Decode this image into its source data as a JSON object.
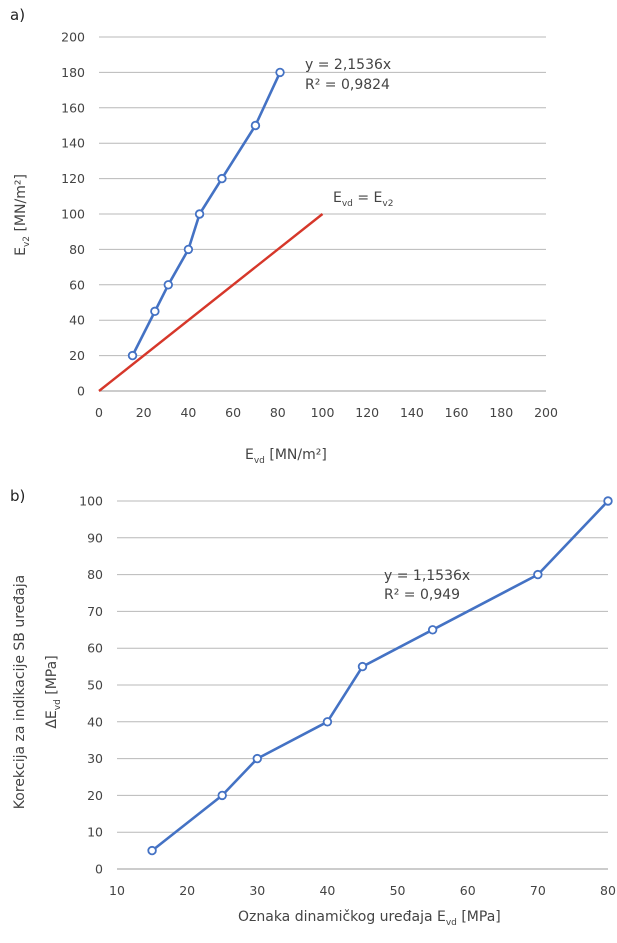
{
  "chart_data": [
    {
      "panel_label": "a)",
      "type": "line",
      "xlabel": {
        "main": "E",
        "sub": "vd",
        "unit": " [MN/m²]"
      },
      "ylabel": {
        "main": "E",
        "sub": "v2",
        "unit": " [MN/m²]"
      },
      "xlim": [
        0,
        200
      ],
      "ylim": [
        0,
        200
      ],
      "xticks": [
        0,
        20,
        40,
        60,
        80,
        100,
        120,
        140,
        160,
        180,
        200
      ],
      "yticks": [
        0,
        20,
        40,
        60,
        80,
        100,
        120,
        140,
        160,
        180,
        200
      ],
      "grid": "horizontal",
      "series": [
        {
          "color": "#4472c4",
          "markers": true,
          "points": [
            [
              15,
              20
            ],
            [
              25,
              45
            ],
            [
              31,
              60
            ],
            [
              40,
              80
            ],
            [
              45,
              100
            ],
            [
              55,
              120
            ],
            [
              70,
              150
            ],
            [
              81,
              180
            ]
          ]
        },
        {
          "color": "#d6372a",
          "markers": false,
          "points": [
            [
              0,
              0
            ],
            [
              100,
              100
            ]
          ]
        }
      ],
      "annotations": {
        "fit_equation": "y = 2,1536x",
        "fit_r2": "R² = 0,9824",
        "ref_line": {
          "a": "E",
          "a_sub": "vd",
          "eq": " = ",
          "b": "E",
          "b_sub": "v2"
        }
      }
    },
    {
      "panel_label": "b)",
      "type": "line",
      "xlabel": {
        "main": "Oznaka dinamičkog uređaja E",
        "sub": "vd",
        "unit": " [MPa]"
      },
      "ylabel_outer": "Korekcija za indikacije SB uređaja",
      "ylabel": {
        "main": "ΔE",
        "sub": "vd",
        "unit": " [MPa]"
      },
      "xlim": [
        10,
        80
      ],
      "ylim": [
        0,
        100
      ],
      "xticks": [
        10,
        20,
        30,
        40,
        50,
        60,
        70,
        80
      ],
      "yticks": [
        0,
        10,
        20,
        30,
        40,
        50,
        60,
        70,
        80,
        90,
        100
      ],
      "grid": "horizontal",
      "series": [
        {
          "color": "#4472c4",
          "markers": true,
          "points": [
            [
              15,
              5
            ],
            [
              25,
              20
            ],
            [
              30,
              30
            ],
            [
              40,
              40
            ],
            [
              45,
              55
            ],
            [
              55,
              65
            ],
            [
              70,
              80
            ],
            [
              80,
              100
            ]
          ]
        }
      ],
      "annotations": {
        "fit_equation": "y = 1,1536x",
        "fit_r2": "R² = 0,949"
      }
    }
  ]
}
